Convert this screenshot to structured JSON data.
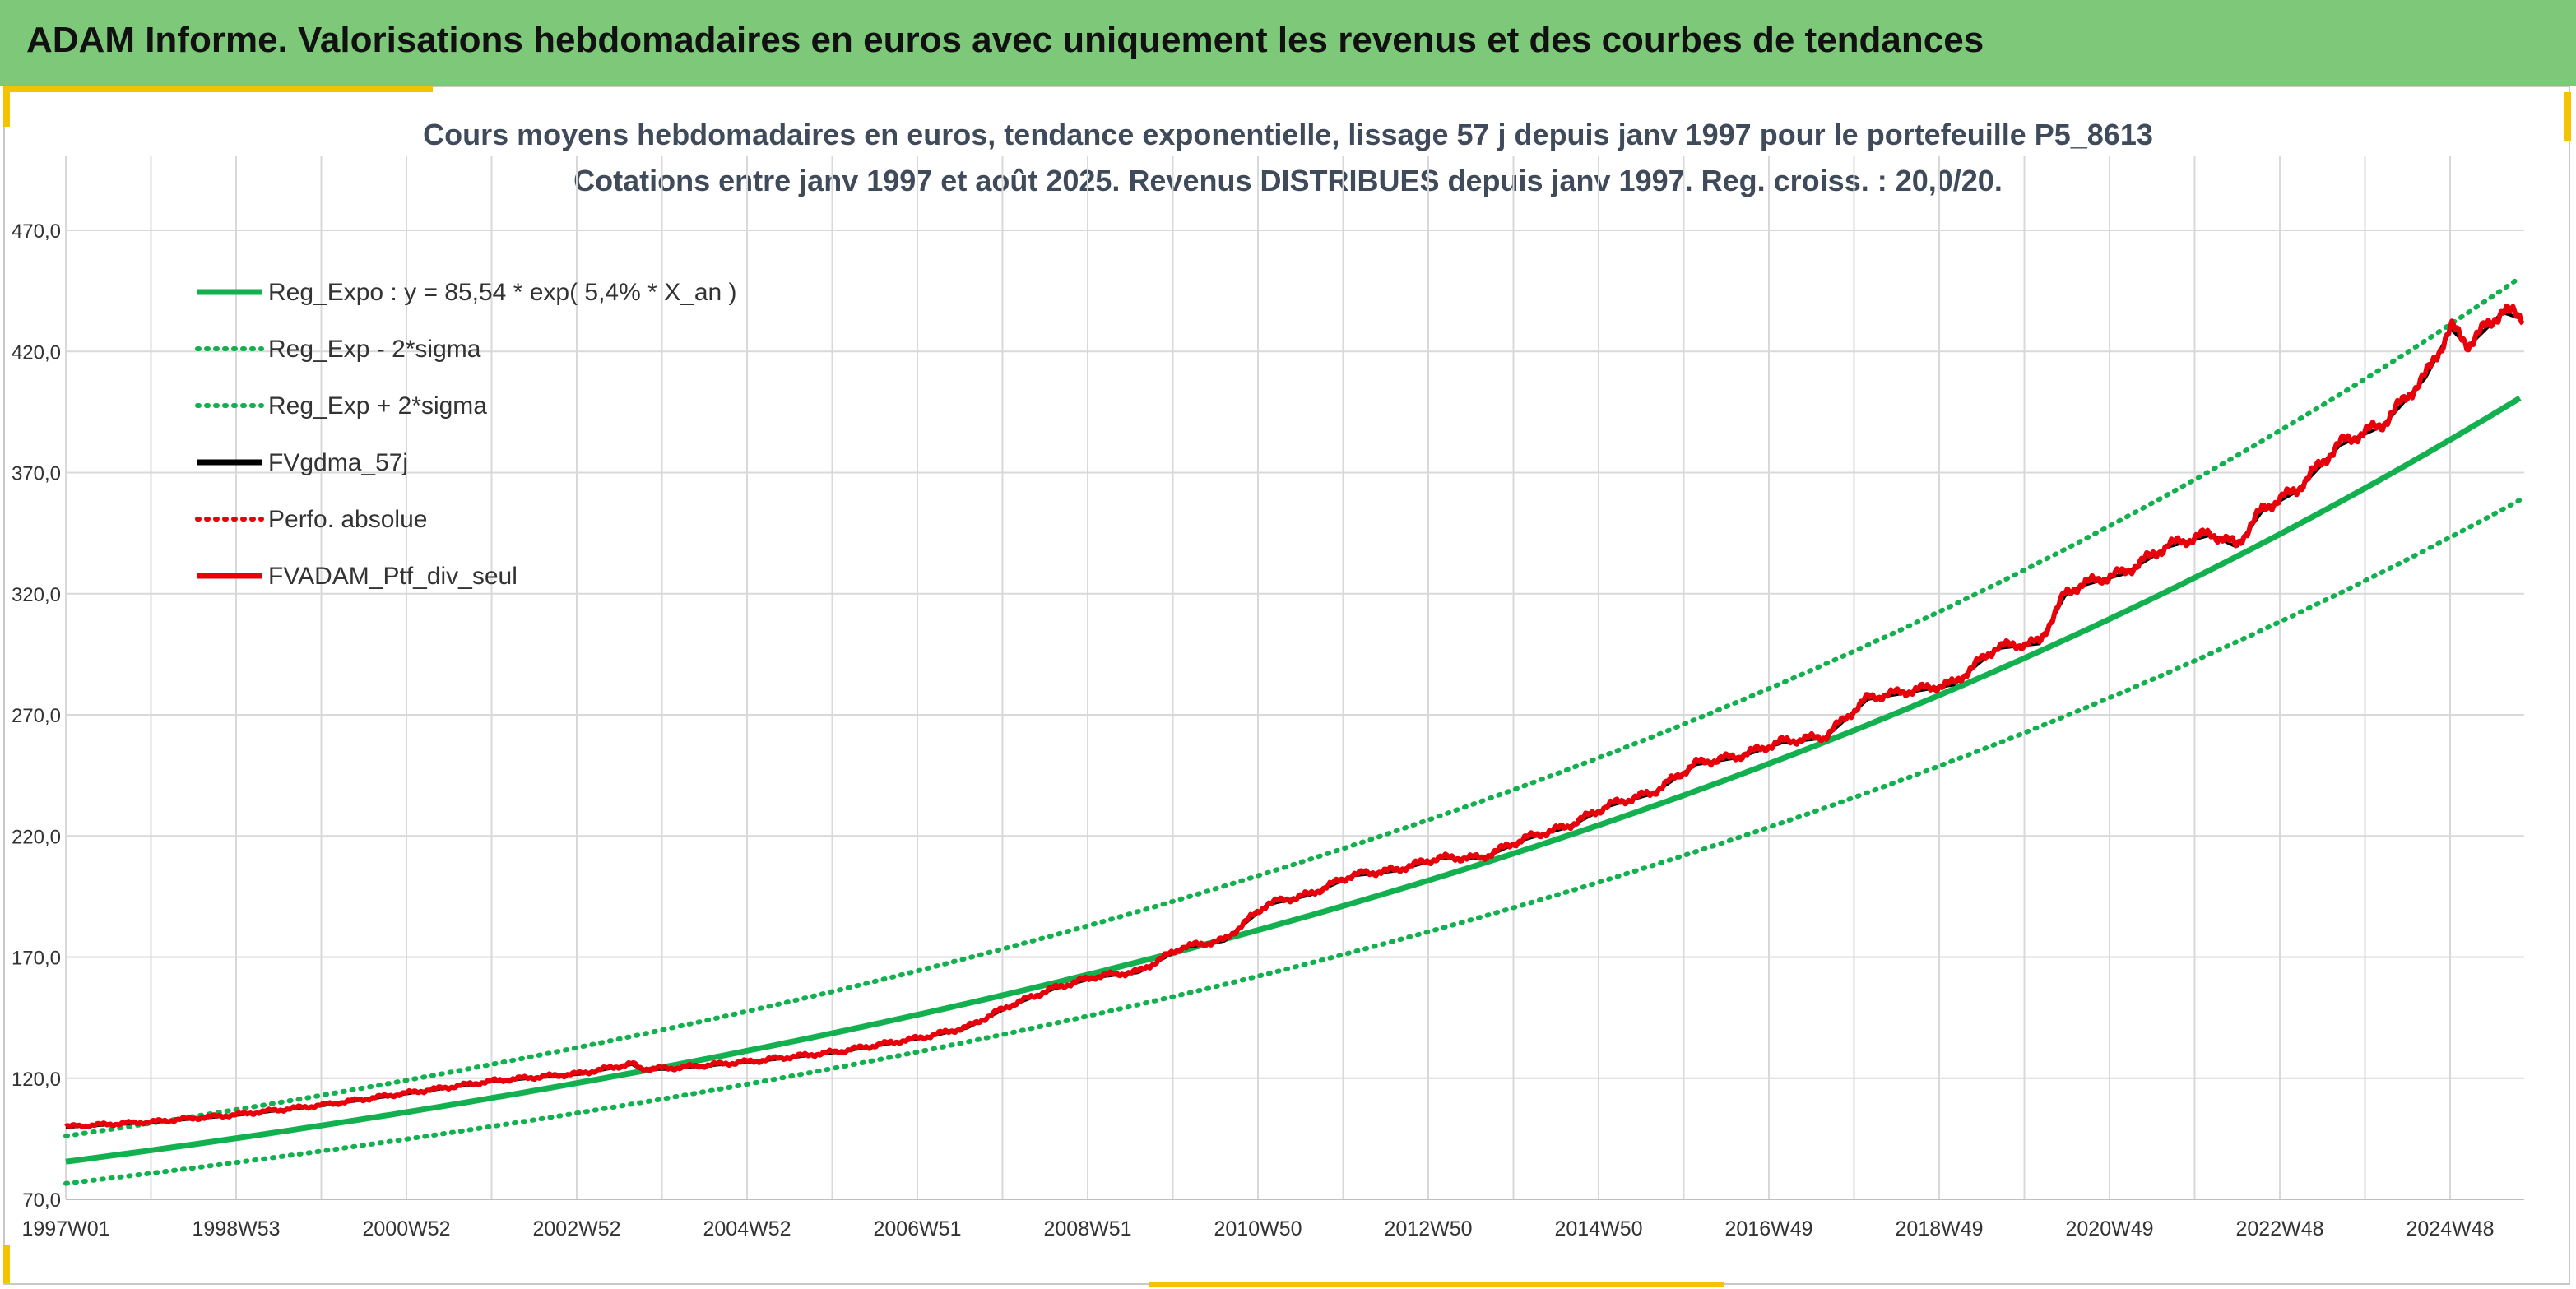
{
  "banner": {
    "title": "ADAM Informe. Valorisations hebdomadaires en euros avec uniquement les revenus et des courbes de tendances"
  },
  "colors": {
    "banner_bg": "#7ec87a",
    "accent": "#f3c300",
    "trend": "#12b04e",
    "black_series": "#000000",
    "red_series": "#e8000b",
    "grid": "#d9d9d9",
    "title_text": "#3f4a5a"
  },
  "chart_data": {
    "type": "line",
    "title": "Cours moyens hebdomadaires en euros, tendance exponentielle, lissage 57 j depuis janv 1997 pour le portefeuille P5_8613",
    "subtitle": "Cotations entre janv 1997 et août 2025. Revenus DISTRIBUES depuis janv 1997. Reg. croiss. : 20,0/20.",
    "xlabel": "",
    "ylabel": "",
    "x_range_years": [
      1997.0,
      2025.65
    ],
    "ylim": [
      70,
      470
    ],
    "y_ticks": [
      "70,0",
      "120,0",
      "170,0",
      "220,0",
      "270,0",
      "320,0",
      "370,0",
      "420,0",
      "470,0"
    ],
    "x_tick_labels": [
      "1997W01",
      "1998W53",
      "2000W52",
      "2002W52",
      "2004W52",
      "2006W51",
      "2008W51",
      "2010W50",
      "2012W50",
      "2014W50",
      "2016W49",
      "2018W49",
      "2020W49",
      "2022W48",
      "2024W48"
    ],
    "grid": true,
    "legend_position": "top-left",
    "trend": {
      "a": 85.54,
      "rate": 0.054,
      "sigma_lower_factor": 0.895,
      "sigma_upper_factor": 1.124
    },
    "series": [
      {
        "name": "Reg_Expo : y = 85,54 * exp( 5,4% *  X_an )",
        "style": "solid-thick",
        "color": "#12b04e",
        "kind": "trend"
      },
      {
        "name": "Reg_Exp - 2*sigma",
        "style": "dotted",
        "color": "#12b04e",
        "kind": "lower"
      },
      {
        "name": "Reg_Exp + 2*sigma",
        "style": "dotted",
        "color": "#12b04e",
        "kind": "upper"
      },
      {
        "name": "FVgdma_57j",
        "style": "solid",
        "color": "#000000",
        "kind": "smooth"
      },
      {
        "name": "Perfo. absolue",
        "style": "dotted",
        "color": "#e8000b",
        "kind": "none"
      },
      {
        "name": "FVADAM_Ptf_div_seul",
        "style": "solid-thick",
        "color": "#e8000b",
        "kind": "portfolio"
      }
    ],
    "portfolio": {
      "x": [
        1997.0,
        1998.0,
        1999.0,
        2000.0,
        2001.0,
        2002.0,
        2003.0,
        2003.6,
        2003.7,
        2004.0,
        2005.0,
        2006.0,
        2007.0,
        2007.5,
        2008.0,
        2008.5,
        2009.0,
        2009.5,
        2010.0,
        2010.5,
        2011.0,
        2011.5,
        2012.0,
        2012.5,
        2013.0,
        2013.5,
        2014.0,
        2014.5,
        2015.0,
        2015.5,
        2016.0,
        2016.5,
        2017.0,
        2017.5,
        2018.0,
        2018.5,
        2019.0,
        2019.5,
        2020.0,
        2020.3,
        2020.5,
        2021.0,
        2021.5,
        2022.0,
        2022.3,
        2022.6,
        2023.0,
        2023.5,
        2024.0,
        2024.5,
        2024.8,
        2025.0,
        2025.2,
        2025.4,
        2025.65
      ],
      "y": [
        100,
        102,
        105,
        109,
        114,
        119,
        122,
        126,
        124,
        124,
        127,
        131,
        137,
        141,
        150,
        157,
        162,
        164,
        174,
        177,
        192,
        196,
        204,
        206,
        211,
        211,
        219,
        224,
        233,
        238,
        250,
        253,
        259,
        261,
        277,
        280,
        283,
        298,
        300,
        320,
        324,
        329,
        340,
        345,
        340,
        355,
        363,
        382,
        390,
        410,
        430,
        423,
        430,
        437,
        434
      ]
    }
  }
}
